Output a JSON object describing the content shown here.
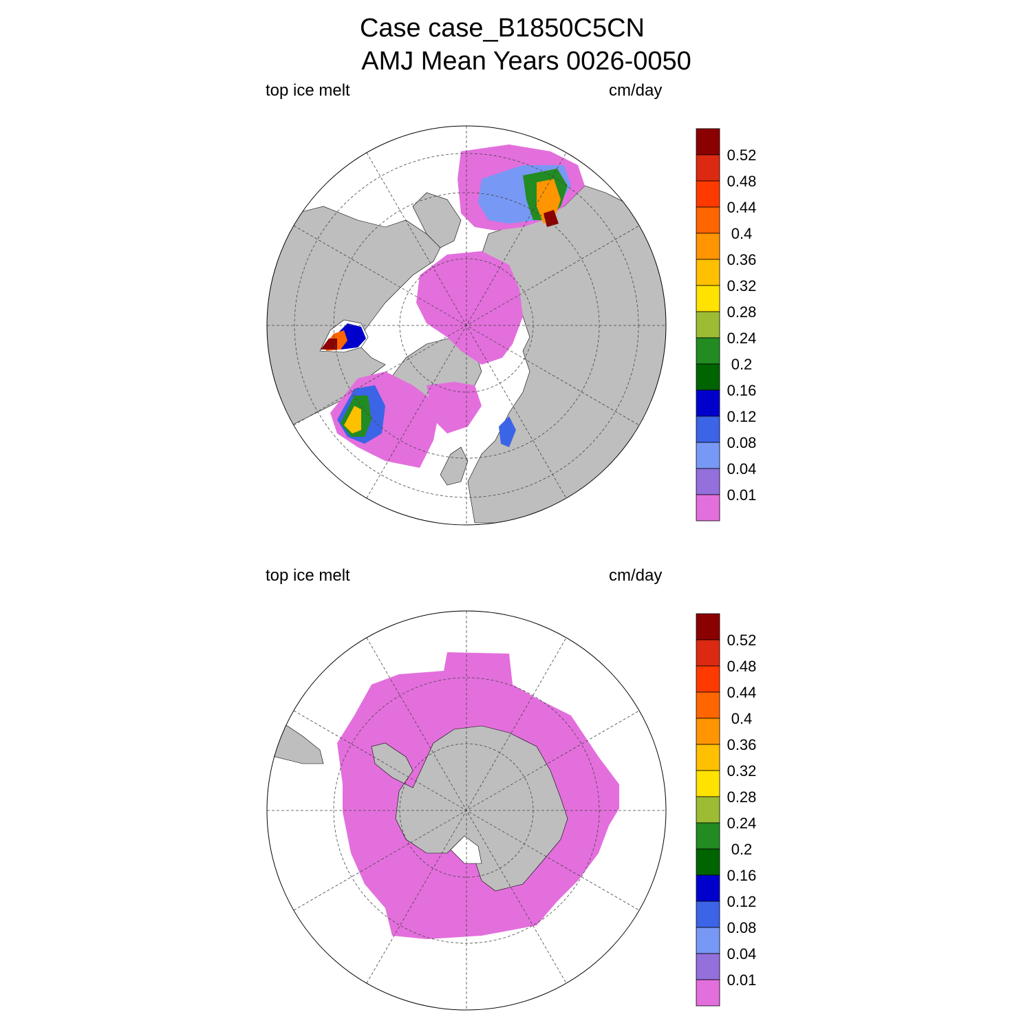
{
  "title": {
    "line1": "Case case_B1850C5CN",
    "line2": "AMJ Mean   Years 0026-0050"
  },
  "panels": [
    {
      "id": "north",
      "left_label": "top ice melt",
      "right_label": "cm/day",
      "hemisphere": "north"
    },
    {
      "id": "south",
      "left_label": "top ice melt",
      "right_label": "cm/day",
      "hemisphere": "south"
    }
  ],
  "colorbar": {
    "levels": [
      "0.52",
      "0.48",
      "0.44",
      "0.4",
      "0.36",
      "0.32",
      "0.28",
      "0.24",
      "0.2",
      "0.16",
      "0.12",
      "0.08",
      "0.04",
      "0.01"
    ],
    "colors": [
      "#8b0000",
      "#dc2a12",
      "#ff3a00",
      "#ff6600",
      "#ff9500",
      "#ffc000",
      "#ffe200",
      "#9cbc34",
      "#228b22",
      "#006400",
      "#0000cd",
      "#3c64e6",
      "#7898f5",
      "#9370db",
      "#e36fdc"
    ]
  },
  "colors": {
    "land": "#bebebe",
    "ocean": "#ffffff",
    "ice_low": "#e36fdc"
  }
}
